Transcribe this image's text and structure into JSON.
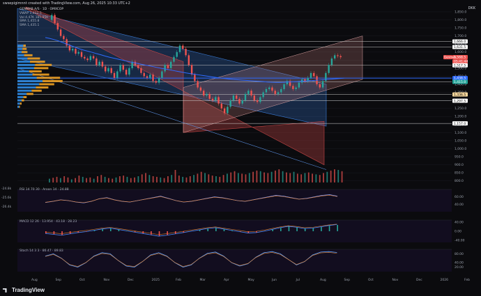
{
  "header": {
    "title": "swsepigimnnt created with TradingView.com, Aug 26, 2025 10:33 UTC+2",
    "currency": "DKK"
  },
  "legend": {
    "symbol_line": "GENMAB A/S · 1D · OMXCOP",
    "lines": [
      "VWAP 1,412.5",
      "Vol 4.47K 185.95K",
      "SMA 1,455.8",
      "SMA 1,435.1"
    ]
  },
  "logo": "TradingView",
  "colors": {
    "background": "#0b0b0e",
    "up": "#26a69a",
    "down": "#ef5350",
    "sma_blue": "#2f6bff",
    "channel_blue": "#3a7bd5",
    "channel_red": "#c44545",
    "profile_blue": "#2e8be6",
    "profile_orange": "#f0a020"
  },
  "price_labels": [
    {
      "text": "1,666.0",
      "bg": "#ffffff",
      "fg": "#000"
    },
    {
      "text": "1,631.5",
      "bg": "#ffffff",
      "fg": "#000"
    },
    {
      "text": "1,568.5",
      "bg": "#ef5350",
      "fg": "#fff"
    },
    {
      "text": "05:41:44",
      "bg": "#ef5350",
      "fg": "#fff"
    },
    {
      "text": "1,517.5",
      "bg": "#ffffff",
      "fg": "#000"
    },
    {
      "text": "1,438.5",
      "bg": "#2f6bff",
      "fg": "#fff"
    },
    {
      "text": "1,415.0",
      "bg": "#26a69a",
      "fg": "#fff"
    },
    {
      "text": "1,336.5",
      "bg": "#f4d59b",
      "fg": "#000"
    },
    {
      "text": "1,297.5",
      "bg": "#ffffff",
      "fg": "#000"
    },
    {
      "text": "1,157.0",
      "bg": "#ffffff",
      "fg": "#000"
    }
  ],
  "label_tag": "Genmab",
  "panes": {
    "rsi": {
      "label": "RSI 14 70 30 · Aroon 14 · 24.88",
      "ticks": [
        "60.00",
        "40.00"
      ],
      "left_ticks": [
        "-24.8k",
        "-25.6k",
        "-26.4k"
      ]
    },
    "macd": {
      "label": "MACD 12 26 · 13.954 · 43.18 · 28.23",
      "ticks": [
        "40.00",
        "0.00",
        "-40.00"
      ]
    },
    "stoch": {
      "label": "Stoch 14 3 3 · 86.47 · 89.83",
      "ticks": [
        "80.00",
        "40.00",
        "20.00"
      ]
    }
  },
  "chart_data": {
    "type": "candlestick",
    "x_axis_labels": [
      "Aug",
      "Sep",
      "Oct",
      "Nov",
      "Dec",
      "2025",
      "Feb",
      "Mar",
      "Apr",
      "May",
      "Jun",
      "Jul",
      "Aug",
      "Sep",
      "Oct",
      "Nov",
      "Dec",
      "2026",
      "Feb"
    ],
    "y_ticks": [
      1850,
      1800,
      1750,
      1700,
      1650,
      1600,
      1550,
      1500,
      1450,
      1400,
      1350,
      1300,
      1250,
      1200,
      1150,
      1100,
      1050,
      1000,
      950,
      900,
      850,
      800
    ],
    "ylim": [
      790,
      1880
    ],
    "price_series": [
      1800,
      1830,
      1780,
      1740,
      1700,
      1680,
      1640,
      1610,
      1620,
      1590,
      1600,
      1570,
      1560,
      1550,
      1575,
      1560,
      1520,
      1540,
      1510,
      1480,
      1500,
      1470,
      1440,
      1480,
      1520,
      1490,
      1460,
      1500,
      1540,
      1520,
      1500,
      1470,
      1450,
      1440,
      1460,
      1420,
      1410,
      1440,
      1480,
      1520,
      1500,
      1540,
      1570,
      1600,
      1640,
      1620,
      1580,
      1520,
      1460,
      1420,
      1380,
      1360,
      1330,
      1340,
      1310,
      1300,
      1320,
      1280,
      1250,
      1220,
      1260,
      1300,
      1330,
      1310,
      1280,
      1300,
      1340,
      1360,
      1330,
      1300,
      1290,
      1320,
      1350,
      1370,
      1380,
      1360,
      1340,
      1350,
      1370,
      1400,
      1420,
      1390,
      1370,
      1380,
      1410,
      1430,
      1420,
      1440,
      1470,
      1450,
      1400,
      1380,
      1420,
      1470,
      1520,
      1560,
      1580,
      1575,
      1568
    ],
    "sma_blue": [
      1690,
      1685,
      1678,
      1670,
      1660,
      1650,
      1640,
      1630,
      1620,
      1612,
      1605,
      1598,
      1590,
      1583,
      1575,
      1568,
      1562,
      1556,
      1550,
      1544,
      1538,
      1533,
      1527,
      1521,
      1516,
      1511,
      1505,
      1500,
      1495,
      1490,
      1485,
      1480,
      1475,
      1470,
      1466,
      1462,
      1458,
      1454,
      1450,
      1446,
      1442,
      1439,
      1436,
      1433,
      1430,
      1428,
      1426,
      1424,
      1422,
      1420,
      1418,
      1416,
      1414,
      1413,
      1412,
      1412,
      1413,
      1414,
      1415,
      1416,
      1418,
      1420,
      1422,
      1424,
      1426,
      1428,
      1430,
      1432,
      1434,
      1436,
      1438
    ],
    "channel_blue": {
      "upper": [
        [
          0,
          1870
        ],
        [
          0.58,
          1400
        ]
      ],
      "lower": [
        [
          0,
          1560
        ],
        [
          0.86,
          870
        ]
      ],
      "top_right_y": 1400,
      "bottom": 1140
    },
    "channel_red": {
      "upper": [
        [
          0.02,
          1870
        ],
        [
          0.86,
          900
        ]
      ],
      "lower": [
        [
          0.45,
          1170
        ],
        [
          0.95,
          1660
        ]
      ]
    },
    "horizontal_levels": [
      1666.0,
      1631.5,
      1517.5,
      1438.5,
      1415.0,
      1336.5,
      1297.5,
      1157.0
    ],
    "volume_profile": {
      "levels": [
        1640,
        1620,
        1600,
        1580,
        1560,
        1540,
        1520,
        1500,
        1480,
        1460,
        1440,
        1420,
        1400,
        1380,
        1360,
        1340,
        1320,
        1300,
        1280,
        1260
      ],
      "buy": [
        14,
        12,
        10,
        16,
        24,
        30,
        42,
        40,
        28,
        36,
        46,
        60,
        52,
        44,
        34,
        22,
        14,
        10,
        6,
        4
      ],
      "sell": [
        6,
        10,
        14,
        20,
        30,
        36,
        40,
        34,
        30,
        40,
        56,
        48,
        36,
        30,
        24,
        16,
        8,
        6,
        4,
        2
      ]
    },
    "volume": [
      12,
      15,
      18,
      14,
      20,
      16,
      10,
      14,
      22,
      18,
      14,
      16,
      12,
      20,
      24,
      18,
      14,
      12,
      16,
      20,
      22,
      18,
      14,
      16,
      20,
      26,
      30,
      24,
      20,
      18,
      16,
      14,
      20,
      24,
      40,
      22,
      18,
      16,
      20,
      24,
      28,
      34,
      30,
      26,
      22,
      20,
      18,
      24,
      28,
      32,
      36,
      30,
      28,
      26,
      30,
      34,
      38,
      36,
      32,
      30,
      34,
      38,
      42,
      36,
      32,
      30,
      34,
      28,
      26,
      30,
      32,
      28,
      26,
      24,
      30,
      34,
      38,
      42,
      40,
      36
    ],
    "oscillator_series": {
      "rsi": [
        45,
        48,
        52,
        50,
        46,
        44,
        48,
        55,
        58,
        52,
        48,
        46,
        50,
        54,
        58,
        62,
        56,
        50,
        46,
        48,
        52,
        56,
        60,
        58,
        54,
        50,
        48,
        52,
        56,
        60,
        64,
        62,
        58,
        54,
        56,
        60,
        64,
        66,
        62
      ],
      "macd": [
        -10,
        -14,
        -18,
        -12,
        -6,
        -2,
        4,
        10,
        14,
        8,
        2,
        -4,
        -10,
        -16,
        -22,
        -18,
        -12,
        -6,
        0,
        6,
        12,
        16,
        10,
        4,
        -2,
        -8,
        -6,
        0,
        8,
        16,
        22,
        18,
        12,
        14,
        20,
        26,
        30
      ],
      "stoch": [
        70,
        80,
        60,
        30,
        20,
        40,
        70,
        85,
        80,
        50,
        25,
        20,
        45,
        75,
        85,
        70,
        40,
        20,
        30,
        60,
        82,
        88,
        70,
        40,
        25,
        35,
        65,
        85,
        90,
        80,
        55,
        30,
        45,
        75,
        88,
        90,
        86
      ]
    }
  }
}
